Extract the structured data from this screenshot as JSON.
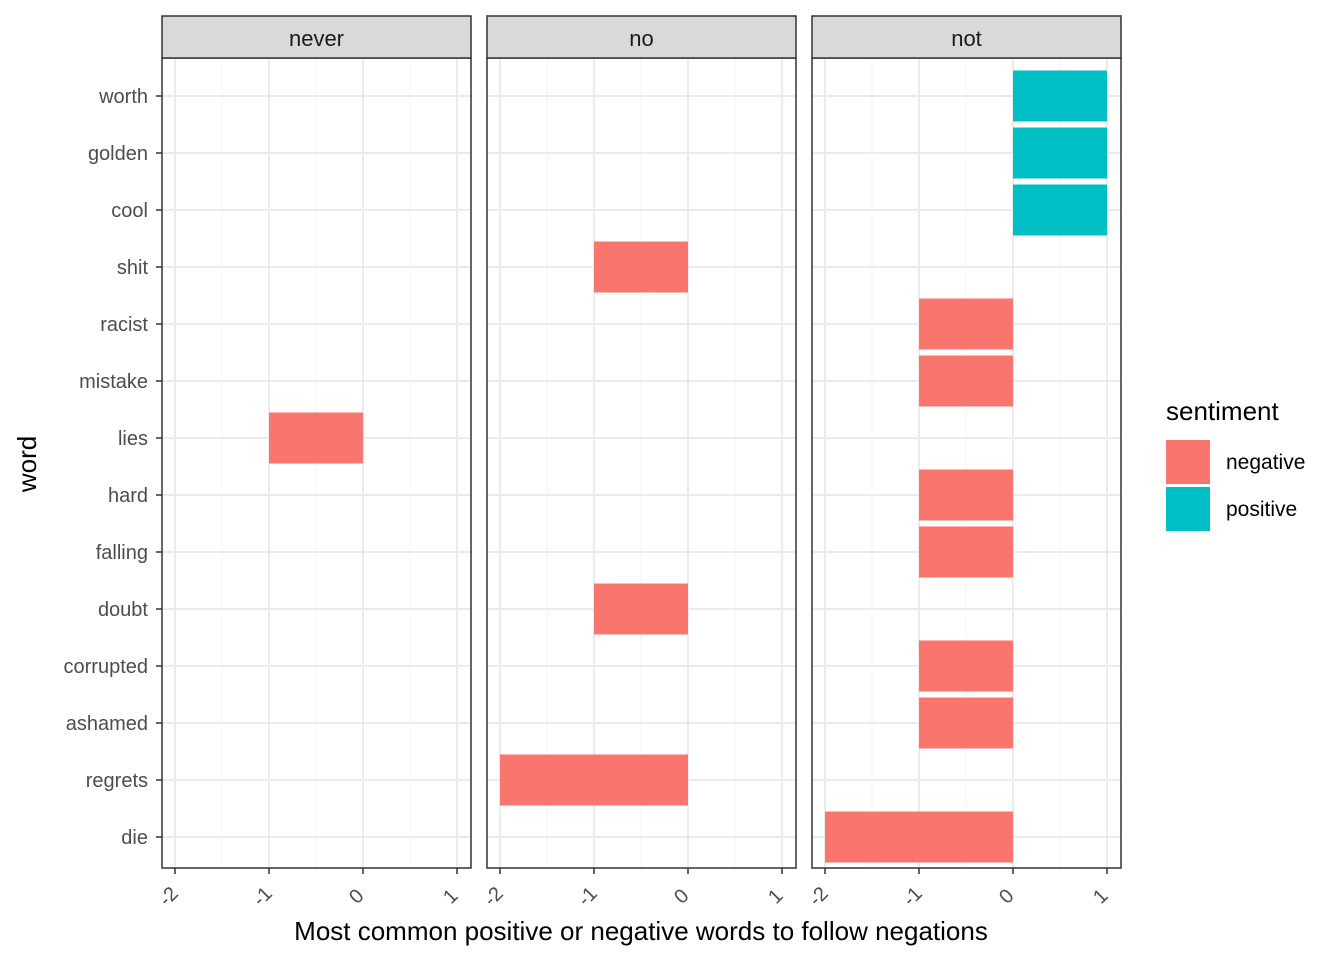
{
  "chart_data": {
    "type": "bar",
    "orientation": "horizontal",
    "faceted": true,
    "xlabel": "Most common positive or negative words to follow negations",
    "ylabel": "word",
    "xlim": [
      -2,
      1
    ],
    "x_ticks": [
      "-2",
      "-1",
      "0",
      "1"
    ],
    "x_tick_values": [
      -2,
      -1,
      0,
      1
    ],
    "categories": [
      "worth",
      "golden",
      "cool",
      "shit",
      "racist",
      "mistake",
      "lies",
      "hard",
      "falling",
      "doubt",
      "corrupted",
      "ashamed",
      "regrets",
      "die"
    ],
    "legend": {
      "title": "sentiment",
      "entries": [
        {
          "label": "negative",
          "color": "#F8766D"
        },
        {
          "label": "positive",
          "color": "#00BFC4"
        }
      ],
      "placement": "right"
    },
    "facets": [
      {
        "label": "never",
        "bars": [
          {
            "word": "lies",
            "value": -1,
            "sentiment": "negative"
          }
        ]
      },
      {
        "label": "no",
        "bars": [
          {
            "word": "shit",
            "value": -1,
            "sentiment": "negative"
          },
          {
            "word": "doubt",
            "value": -1,
            "sentiment": "negative"
          },
          {
            "word": "regrets",
            "value": -2,
            "sentiment": "negative"
          }
        ]
      },
      {
        "label": "not",
        "bars": [
          {
            "word": "worth",
            "value": 1,
            "sentiment": "positive"
          },
          {
            "word": "golden",
            "value": 1,
            "sentiment": "positive"
          },
          {
            "word": "cool",
            "value": 1,
            "sentiment": "positive"
          },
          {
            "word": "racist",
            "value": -1,
            "sentiment": "negative"
          },
          {
            "word": "mistake",
            "value": -1,
            "sentiment": "negative"
          },
          {
            "word": "hard",
            "value": -1,
            "sentiment": "negative"
          },
          {
            "word": "falling",
            "value": -1,
            "sentiment": "negative"
          },
          {
            "word": "corrupted",
            "value": -1,
            "sentiment": "negative"
          },
          {
            "word": "ashamed",
            "value": -1,
            "sentiment": "negative"
          },
          {
            "word": "die",
            "value": -2,
            "sentiment": "negative"
          }
        ]
      }
    ],
    "grid": true,
    "colors": {
      "negative": "#F8766D",
      "positive": "#00BFC4",
      "strip_background": "#D9D9D9",
      "grid_major": "#EBEBEB",
      "grid_minor": "#F5F5F5",
      "panel_border": "#333333",
      "axis_text": "#4D4D4D"
    }
  }
}
